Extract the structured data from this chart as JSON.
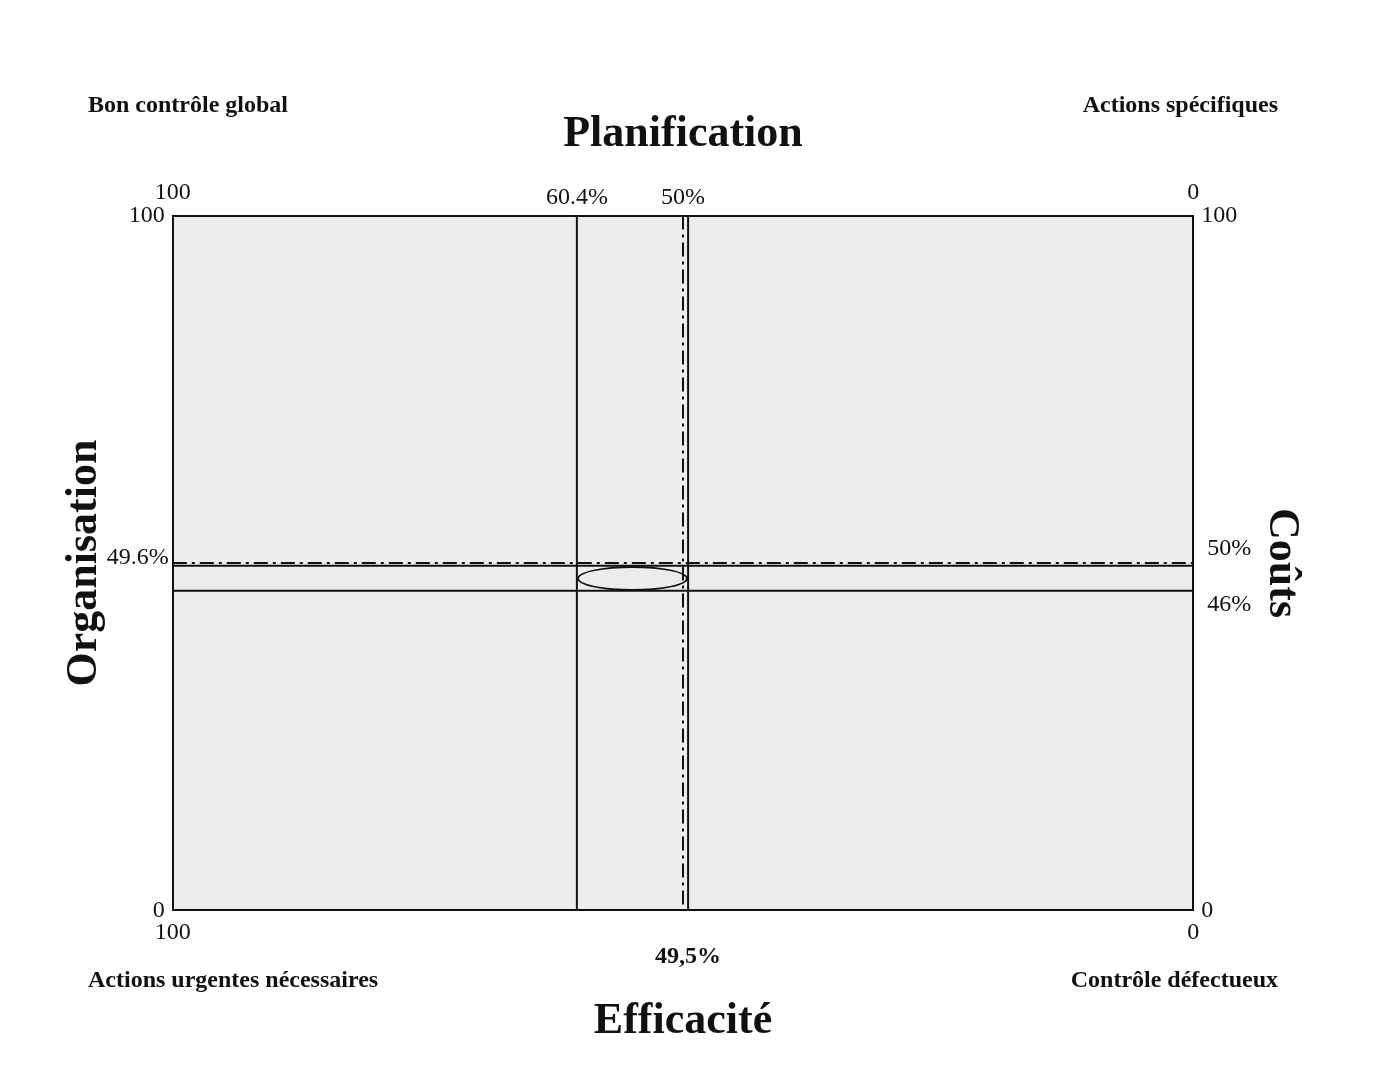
{
  "chart_data": {
    "type": "scatter",
    "xlabel": "Efficacité",
    "x2label": "Planification",
    "ylabel": "Organisation",
    "y2label": "Coûts",
    "xlim": [
      100,
      0
    ],
    "xticks": [
      100,
      0
    ],
    "x2lim": [
      100,
      0
    ],
    "x2ticks": [
      100,
      0
    ],
    "ylim": [
      0,
      100
    ],
    "yticks": [
      0,
      100
    ],
    "y2lim": [
      0,
      100
    ],
    "y2ticks": [
      0,
      100
    ],
    "legend": false,
    "ref_lines": [
      {
        "axis": "x2",
        "value": 60.4,
        "label": "60.4%",
        "line_style": "solid",
        "color": "#111111"
      },
      {
        "axis": "x2",
        "value": 50,
        "label": "50%",
        "line_style": "dashed",
        "color": "#111111"
      },
      {
        "axis": "x",
        "value": 49.5,
        "label": "49,5%",
        "line_style": "solid",
        "color": "#111111"
      },
      {
        "axis": "y",
        "value": 49.6,
        "label": "49.6%",
        "line_style": "solid",
        "color": "#111111"
      },
      {
        "axis": "y2",
        "value": 50,
        "label": "50%",
        "line_style": "dashed",
        "color": "#111111"
      },
      {
        "axis": "y2",
        "value": 46,
        "label": "46%",
        "line_style": "solid",
        "color": "#111111"
      }
    ],
    "annotations": [
      "Bon contrôle global",
      "Actions spécifiques",
      "Actions urgentes nécessaires",
      "Contrôle défectueux"
    ]
  }
}
